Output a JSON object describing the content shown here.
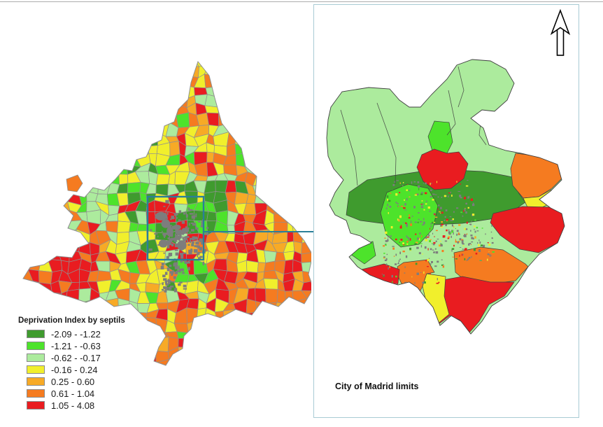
{
  "page": {
    "background": "#FFFFFF",
    "top_rule_color": "#ADADAD"
  },
  "legend": {
    "title": "Deprivation Index by septils",
    "items": [
      {
        "label": "-2.09 - -1.22",
        "color": "#3F9B2E"
      },
      {
        "label": "-1.21 - -0.63",
        "color": "#4DE32B"
      },
      {
        "label": "-0.62 - -0.17",
        "color": "#ACEB9D"
      },
      {
        "label": "-0.16 - 0.24",
        "color": "#F1EF2C"
      },
      {
        "label": "0.25 - 0.60",
        "color": "#F7AA26"
      },
      {
        "label": "0.61 - 1.04",
        "color": "#F57B20"
      },
      {
        "label": "1.05 - 4.08",
        "color": "#E91C20"
      }
    ]
  },
  "overview_map": {
    "urban_color": "#7D7D7D",
    "cell_border_color": "#909090",
    "extent_indicator_color": "#2A7F99"
  },
  "inset_panel": {
    "label": "City of Madrid limits",
    "border_color": "#A8CBD4",
    "boundary_line_color": "#3F3F3F"
  }
}
